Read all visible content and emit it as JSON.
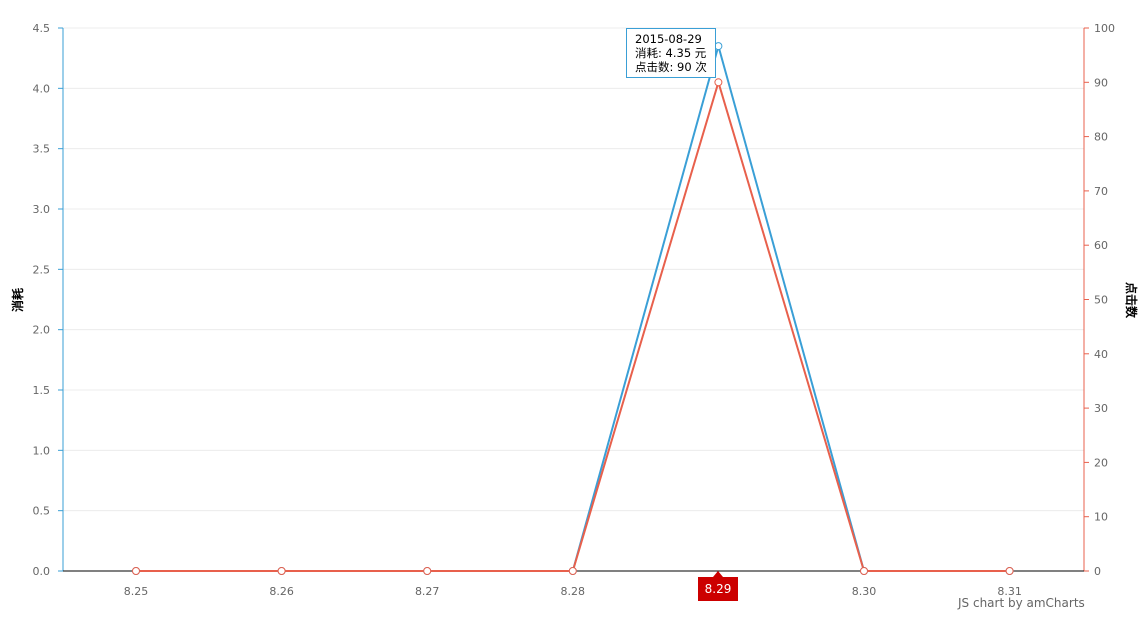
{
  "chart_data": {
    "type": "line",
    "title": "",
    "categories": [
      "8.25",
      "8.26",
      "8.27",
      "8.28",
      "8.29",
      "8.30",
      "8.31"
    ],
    "series": [
      {
        "name": "消耗",
        "axis": "left",
        "color": "#3a9fd6",
        "values": [
          0,
          0,
          0,
          0,
          4.35,
          0,
          0
        ]
      },
      {
        "name": "点击数",
        "axis": "right",
        "color": "#e8604c",
        "values": [
          0,
          0,
          0,
          0,
          90,
          0,
          0
        ]
      }
    ],
    "left_axis": {
      "label": "消耗",
      "min": 0,
      "max": 4.5,
      "ticks": [
        "0.0",
        "0.5",
        "1.0",
        "1.5",
        "2.0",
        "2.5",
        "3.0",
        "3.5",
        "4.0",
        "4.5"
      ],
      "color": "#3a9fd6"
    },
    "right_axis": {
      "label": "点击数",
      "min": 0,
      "max": 100,
      "ticks": [
        "0",
        "10",
        "20",
        "30",
        "40",
        "50",
        "60",
        "70",
        "80",
        "90",
        "100"
      ],
      "color": "#e8604c"
    },
    "grid": true,
    "cursor": {
      "category": "8.29",
      "label": "8.29",
      "color": "#cc0000"
    },
    "tooltip": {
      "date": "2015-08-29",
      "line1": "消耗: 4.35 元",
      "line2": "点击数: 90 次"
    }
  },
  "credit": "JS chart by amCharts"
}
